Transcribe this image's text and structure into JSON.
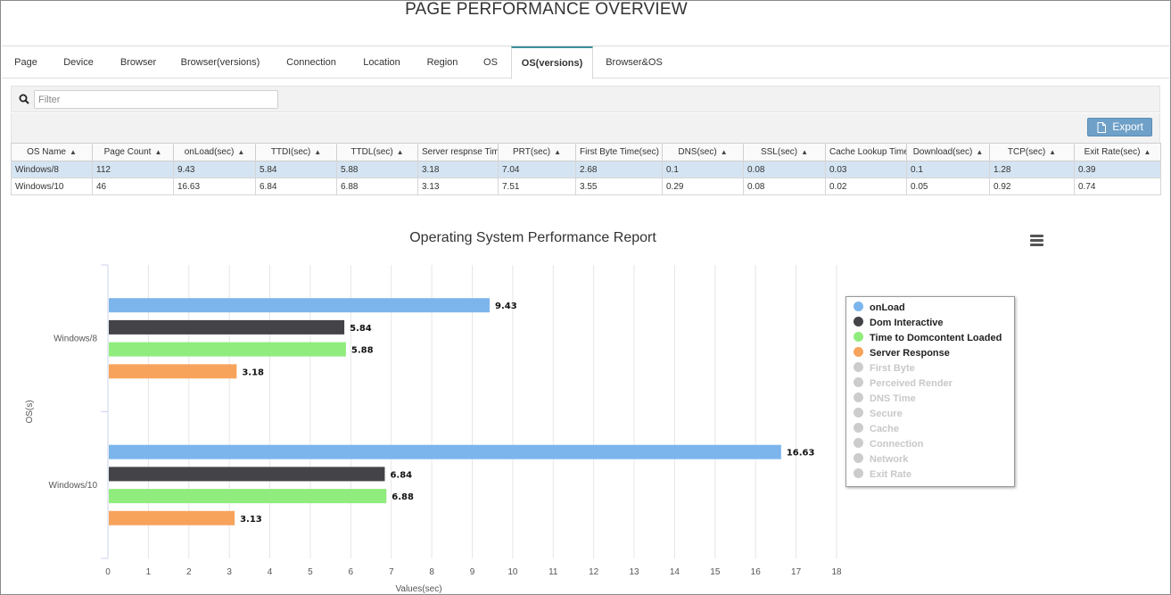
{
  "page_title": "PAGE PERFORMANCE OVERVIEW",
  "tabs": [
    {
      "label": "Page"
    },
    {
      "label": "Device"
    },
    {
      "label": "Browser"
    },
    {
      "label": "Browser(versions)"
    },
    {
      "label": "Connection"
    },
    {
      "label": "Location"
    },
    {
      "label": "Region"
    },
    {
      "label": "OS"
    },
    {
      "label": "OS(versions)"
    },
    {
      "label": "Browser&OS"
    }
  ],
  "active_tab": "OS(versions)",
  "filter": {
    "placeholder": "Filter",
    "value": ""
  },
  "export_label": "Export",
  "table": {
    "columns": [
      "OS Name",
      "Page Count",
      "onLoad(sec)",
      "TTDI(sec)",
      "TTDL(sec)",
      "Server respnse Time",
      "PRT(sec)",
      "First Byte Time(sec)",
      "DNS(sec)",
      "SSL(sec)",
      "Cache Lookup Time",
      "Download(sec)",
      "TCP(sec)",
      "Exit Rate(sec)"
    ],
    "rows": [
      [
        "Windows/8",
        "112",
        "9.43",
        "5.84",
        "5.88",
        "3.18",
        "7.04",
        "2.68",
        "0.1",
        "0.08",
        "0.03",
        "0.1",
        "1.28",
        "0.39"
      ],
      [
        "Windows/10",
        "46",
        "16.63",
        "6.84",
        "6.88",
        "3.13",
        "7.51",
        "3.55",
        "0.29",
        "0.08",
        "0.02",
        "0.05",
        "0.92",
        "0.74"
      ]
    ],
    "selected_row": 0
  },
  "chart_data": {
    "type": "bar",
    "orientation": "horizontal",
    "title": "Operating System Performance Report",
    "xlabel": "Values(sec)",
    "ylabel": "OS(s)",
    "categories": [
      "Windows/8",
      "Windows/10"
    ],
    "xlim": [
      0,
      18
    ],
    "xticks": [
      "0",
      "1",
      "2",
      "3",
      "4",
      "5",
      "6",
      "7",
      "8",
      "9",
      "10",
      "11",
      "12",
      "13",
      "14",
      "15",
      "16",
      "17",
      "18"
    ],
    "grid": true,
    "legend_position": "right",
    "series": [
      {
        "name": "onLoad",
        "color": "#7cb5ec",
        "values": [
          9.43,
          16.63
        ],
        "visible": true
      },
      {
        "name": "Dom Interactive",
        "color": "#434348",
        "values": [
          5.84,
          6.84
        ],
        "visible": true
      },
      {
        "name": "Time to Domcontent Loaded",
        "color": "#90ed7d",
        "values": [
          5.88,
          6.88
        ],
        "visible": true
      },
      {
        "name": "Server Response",
        "color": "#f7a35c",
        "values": [
          3.18,
          3.13
        ],
        "visible": true
      },
      {
        "name": "First Byte",
        "color": "#cccccc",
        "visible": false
      },
      {
        "name": "Perceived Render",
        "color": "#cccccc",
        "visible": false
      },
      {
        "name": "DNS Time",
        "color": "#cccccc",
        "visible": false
      },
      {
        "name": "Secure",
        "color": "#cccccc",
        "visible": false
      },
      {
        "name": "Cache",
        "color": "#cccccc",
        "visible": false
      },
      {
        "name": "Connection",
        "color": "#cccccc",
        "visible": false
      },
      {
        "name": "Network",
        "color": "#cccccc",
        "visible": false
      },
      {
        "name": "Exit Rate",
        "color": "#cccccc",
        "visible": false
      }
    ]
  }
}
